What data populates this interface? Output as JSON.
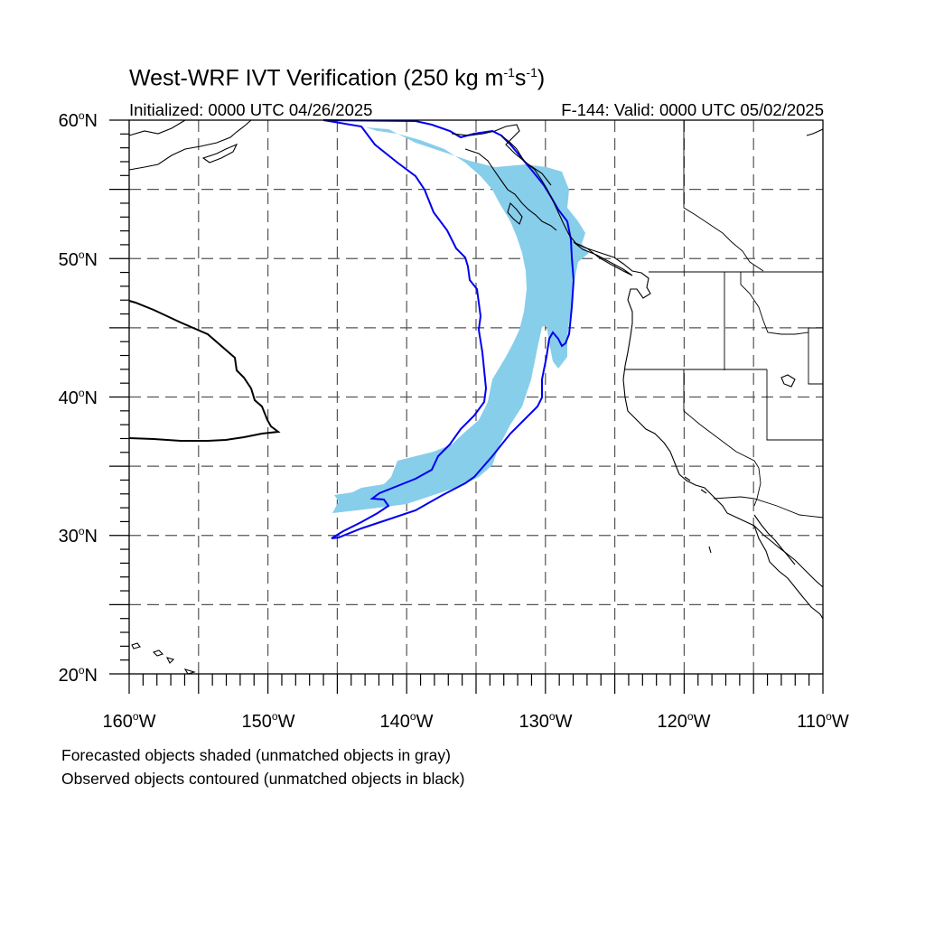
{
  "title": {
    "main": "West-WRF IVT Verification (250 kg m",
    "exp1": "-1",
    "mid": "s",
    "exp2": "-1",
    "end": ")"
  },
  "init_text": "Initialized: 0000 UTC 04/26/2025",
  "valid_text": "F-144: Valid: 0000 UTC 05/02/2025",
  "lat_labels": [
    {
      "value": "60",
      "suffix": "N"
    },
    {
      "value": "50",
      "suffix": "N"
    },
    {
      "value": "40",
      "suffix": "N"
    },
    {
      "value": "30",
      "suffix": "N"
    },
    {
      "value": "20",
      "suffix": "N"
    }
  ],
  "lon_labels": [
    {
      "value": "160",
      "suffix": "W"
    },
    {
      "value": "150",
      "suffix": "W"
    },
    {
      "value": "140",
      "suffix": "W"
    },
    {
      "value": "130",
      "suffix": "W"
    },
    {
      "value": "120",
      "suffix": "W"
    },
    {
      "value": "110",
      "suffix": "W"
    }
  ],
  "degree_symbol": "o",
  "caption_line1": "Forecasted objects shaded (unmatched objects in gray)",
  "caption_line2": "Observed objects contoured (unmatched objects in black)",
  "map_extent": {
    "lon_min": -160,
    "lon_max": -110,
    "lat_min": 20,
    "lat_max": 60
  },
  "colors": {
    "forecast_shading": "#87ceeb",
    "observed_contour": "#0000ee",
    "unmatched_contour": "#000000",
    "coastline": "#000000",
    "grid": "#555555"
  }
}
